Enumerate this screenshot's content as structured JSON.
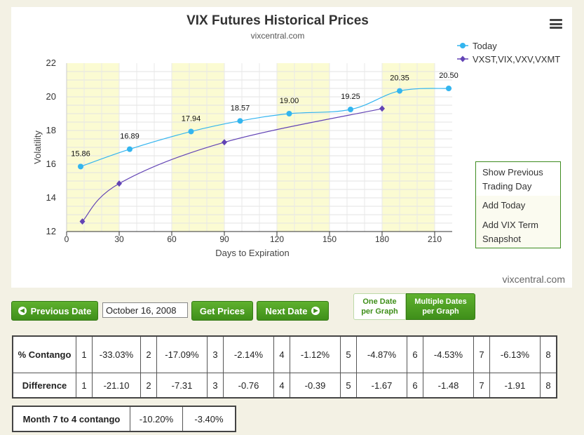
{
  "chart_data": {
    "type": "line",
    "title": "VIX Futures Historical Prices",
    "subtitle": "vixcentral.com",
    "xlabel": "Days to Expiration",
    "ylabel": "Volatility",
    "xlim": [
      0,
      220
    ],
    "ylim": [
      12,
      22
    ],
    "x_ticks": [
      0,
      30,
      60,
      90,
      120,
      150,
      180,
      210
    ],
    "y_ticks": [
      12,
      14,
      16,
      18,
      20,
      22
    ],
    "legend_position": "top-right",
    "series": [
      {
        "name": "Today",
        "color": "#33b5ef",
        "marker": "circle",
        "points": [
          [
            8,
            15.86
          ],
          [
            36,
            16.89
          ],
          [
            71,
            17.94
          ],
          [
            99,
            18.57
          ],
          [
            127,
            19.0
          ],
          [
            162,
            19.25
          ],
          [
            190,
            20.35
          ],
          [
            218,
            20.5
          ]
        ],
        "labels": [
          "15.86",
          "16.89",
          "17.94",
          "18.57",
          "19.00",
          "19.25",
          "20.35",
          "20.50"
        ]
      },
      {
        "name": "VXST,VIX,VXV,VXMT",
        "color": "#6243b5",
        "marker": "diamond",
        "points": [
          [
            9,
            12.6
          ],
          [
            30,
            14.85
          ],
          [
            90,
            17.3
          ],
          [
            180,
            19.3
          ]
        ]
      }
    ],
    "shaded_bands": [
      [
        0,
        30
      ],
      [
        60,
        90
      ],
      [
        120,
        150
      ],
      [
        180,
        210
      ]
    ],
    "band_color": "#fbfbd2"
  },
  "menu": {
    "items": [
      "Show Previous Trading Day",
      "Add Today",
      "Add VIX Term Snapshot"
    ]
  },
  "credit": "vixcentral.com",
  "controls": {
    "prev_label": "Previous Date",
    "date_value": "October 16, 2008",
    "get_label": "Get Prices",
    "next_label": "Next Date",
    "toggle_one": "One Date per Graph",
    "toggle_multi": "Multiple Dates per Graph"
  },
  "contango_table": {
    "row1_label": "% Contango",
    "row2_label": "Difference",
    "months": [
      "1",
      "2",
      "3",
      "4",
      "5",
      "6",
      "7",
      "8"
    ],
    "contango": [
      "-33.03%",
      "-17.09%",
      "-2.14%",
      "-1.12%",
      "-4.87%",
      "-4.53%",
      "-6.13%"
    ],
    "difference": [
      "-21.10",
      "-7.31",
      "-0.76",
      "-0.39",
      "-1.67",
      "-1.48",
      "-1.91"
    ]
  },
  "month_table": {
    "label": "Month 7 to 4 contango",
    "values": [
      "-10.20%",
      "-3.40%"
    ]
  }
}
